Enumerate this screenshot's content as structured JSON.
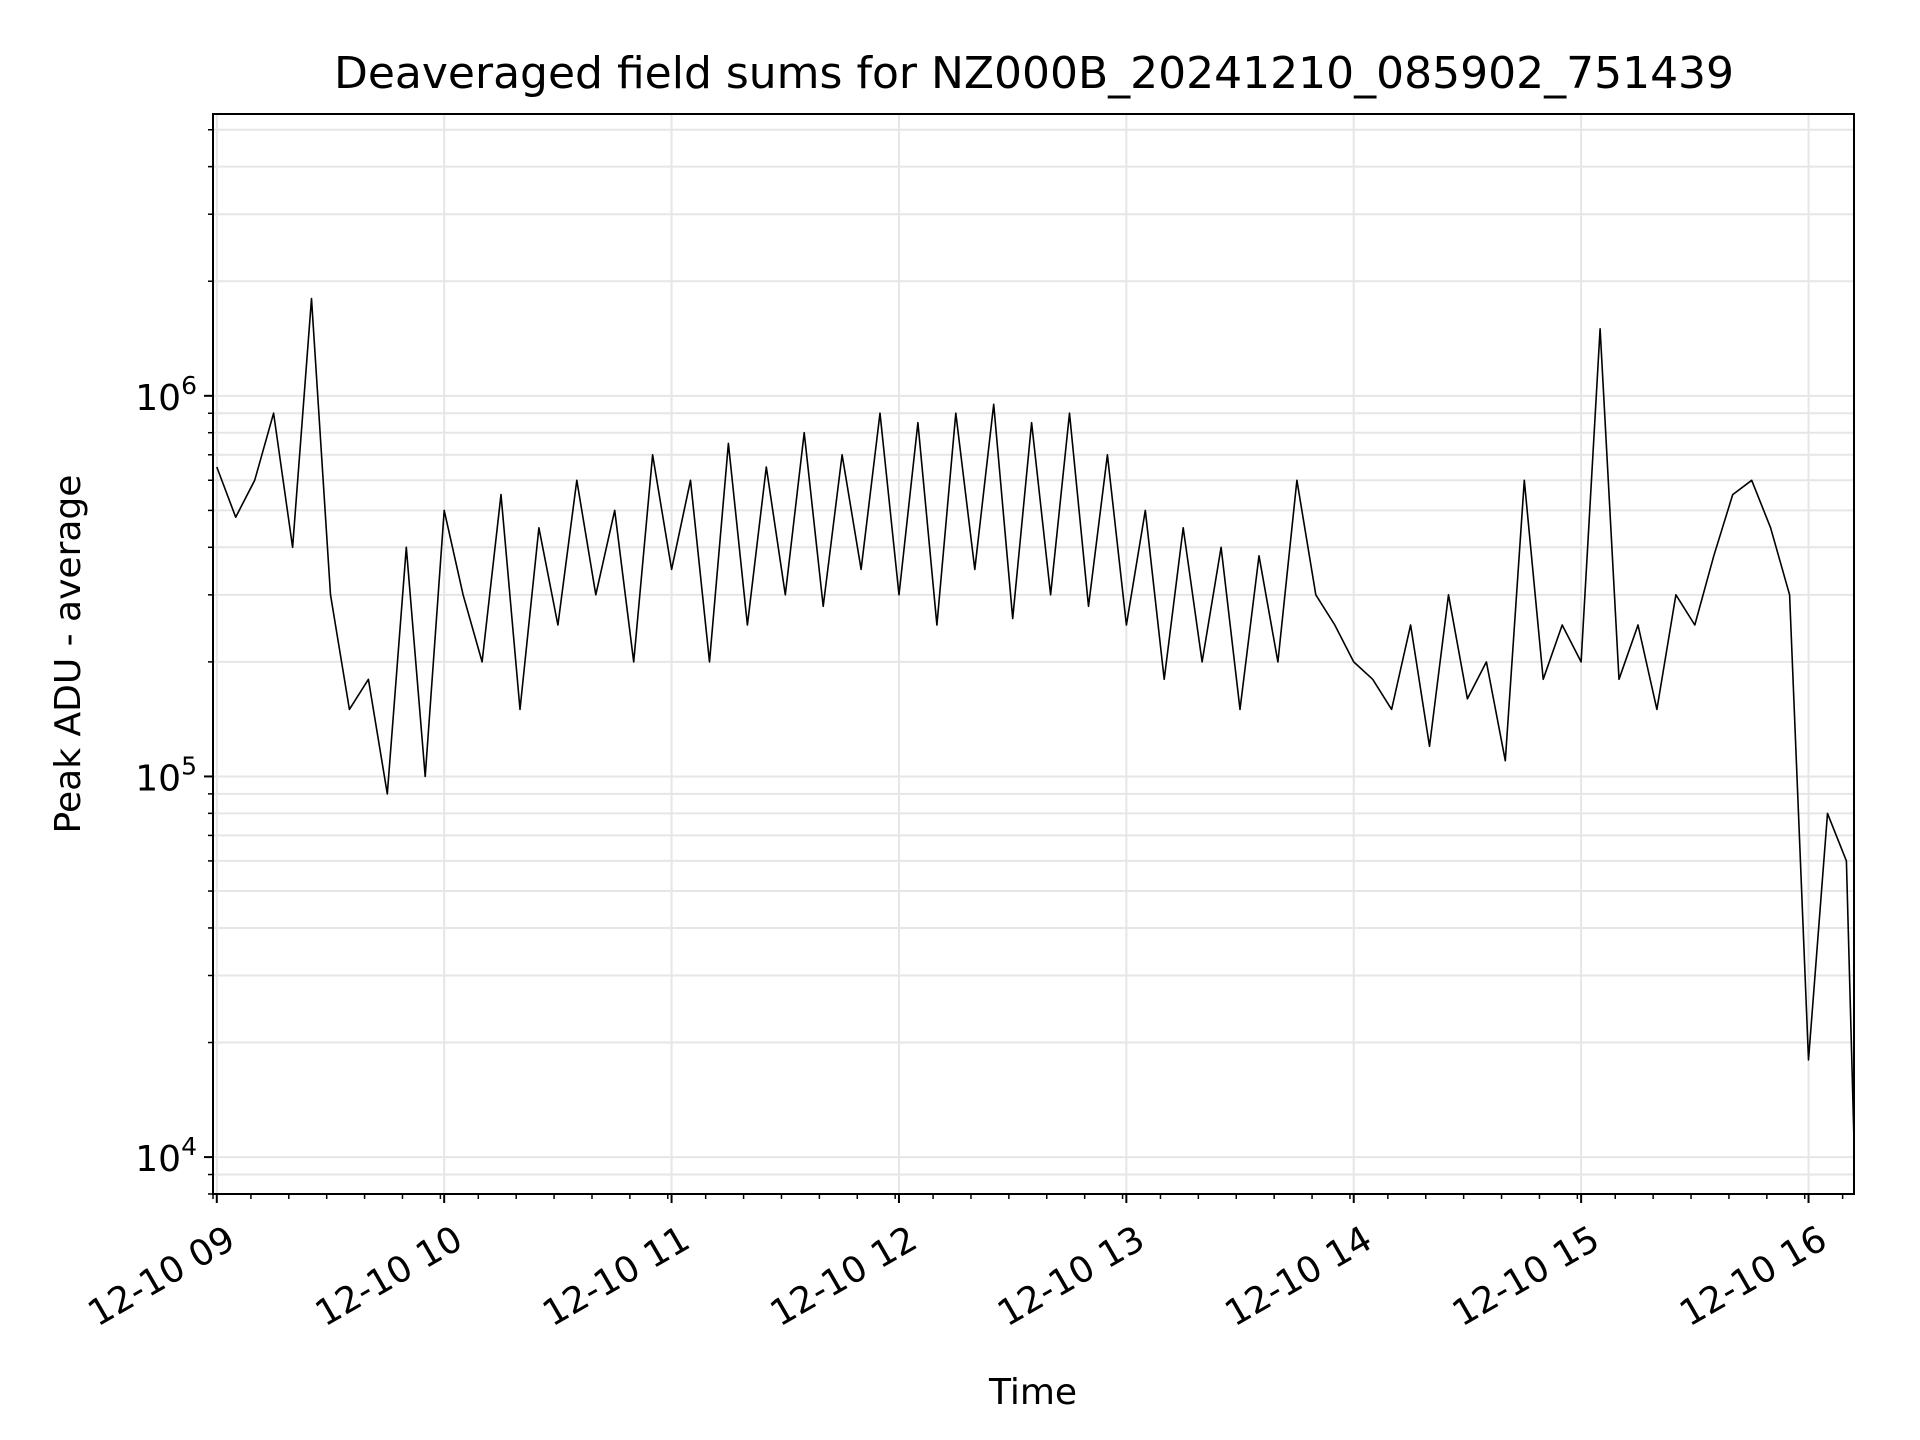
{
  "chart_data": {
    "type": "line",
    "title": "Deaveraged field sums for NZ000B_20241210_085902_751439",
    "xlabel": "Time",
    "ylabel": "Peak ADU - average",
    "y_scale": "log",
    "ylim": [
      8000,
      5500000
    ],
    "xlim": [
      "2024-12-10 08:59",
      "2024-12-10 16:12"
    ],
    "x_tick_labels": [
      "12-10 09",
      "12-10 10",
      "12-10 11",
      "12-10 12",
      "12-10 13",
      "12-10 14",
      "12-10 15",
      "12-10 16"
    ],
    "y_tick_labels": [
      {
        "base": "10",
        "exp": "4"
      },
      {
        "base": "10",
        "exp": "5"
      },
      {
        "base": "10",
        "exp": "6"
      }
    ],
    "grid": true,
    "line_color": "#000000",
    "series": [
      {
        "x": [
          "2024-12-10 09:00",
          "2024-12-10 09:05",
          "2024-12-10 09:10",
          "2024-12-10 09:15",
          "2024-12-10 09:20",
          "2024-12-10 09:25",
          "2024-12-10 09:30",
          "2024-12-10 09:35",
          "2024-12-10 09:40",
          "2024-12-10 09:45",
          "2024-12-10 09:50",
          "2024-12-10 09:55",
          "2024-12-10 10:00",
          "2024-12-10 10:05",
          "2024-12-10 10:10",
          "2024-12-10 10:15",
          "2024-12-10 10:20",
          "2024-12-10 10:25",
          "2024-12-10 10:30",
          "2024-12-10 10:35",
          "2024-12-10 10:40",
          "2024-12-10 10:45",
          "2024-12-10 10:50",
          "2024-12-10 10:55",
          "2024-12-10 11:00",
          "2024-12-10 11:05",
          "2024-12-10 11:10",
          "2024-12-10 11:15",
          "2024-12-10 11:20",
          "2024-12-10 11:25",
          "2024-12-10 11:30",
          "2024-12-10 11:35",
          "2024-12-10 11:40",
          "2024-12-10 11:45",
          "2024-12-10 11:50",
          "2024-12-10 11:55",
          "2024-12-10 12:00",
          "2024-12-10 12:05",
          "2024-12-10 12:10",
          "2024-12-10 12:15",
          "2024-12-10 12:20",
          "2024-12-10 12:25",
          "2024-12-10 12:30",
          "2024-12-10 12:35",
          "2024-12-10 12:40",
          "2024-12-10 12:45",
          "2024-12-10 12:50",
          "2024-12-10 12:55",
          "2024-12-10 13:00",
          "2024-12-10 13:05",
          "2024-12-10 13:10",
          "2024-12-10 13:15",
          "2024-12-10 13:20",
          "2024-12-10 13:25",
          "2024-12-10 13:30",
          "2024-12-10 13:35",
          "2024-12-10 13:40",
          "2024-12-10 13:45",
          "2024-12-10 13:50",
          "2024-12-10 13:55",
          "2024-12-10 14:00",
          "2024-12-10 14:05",
          "2024-12-10 14:10",
          "2024-12-10 14:15",
          "2024-12-10 14:20",
          "2024-12-10 14:25",
          "2024-12-10 14:30",
          "2024-12-10 14:35",
          "2024-12-10 14:40",
          "2024-12-10 14:45",
          "2024-12-10 14:50",
          "2024-12-10 14:55",
          "2024-12-10 15:00",
          "2024-12-10 15:05",
          "2024-12-10 15:10",
          "2024-12-10 15:15",
          "2024-12-10 15:20",
          "2024-12-10 15:25",
          "2024-12-10 15:30",
          "2024-12-10 15:35",
          "2024-12-10 15:40",
          "2024-12-10 15:45",
          "2024-12-10 15:50",
          "2024-12-10 15:55",
          "2024-12-10 16:00",
          "2024-12-10 16:05",
          "2024-12-10 16:10",
          "2024-12-10 16:12"
        ],
        "y": [
          650000,
          480000,
          600000,
          900000,
          400000,
          1800000,
          300000,
          150000,
          180000,
          90000,
          400000,
          100000,
          500000,
          300000,
          200000,
          550000,
          150000,
          450000,
          250000,
          600000,
          300000,
          500000,
          200000,
          700000,
          350000,
          600000,
          200000,
          750000,
          250000,
          650000,
          300000,
          800000,
          280000,
          700000,
          350000,
          900000,
          300000,
          850000,
          250000,
          900000,
          350000,
          950000,
          260000,
          850000,
          300000,
          900000,
          280000,
          700000,
          250000,
          500000,
          180000,
          450000,
          200000,
          400000,
          150000,
          380000,
          200000,
          600000,
          300000,
          250000,
          200000,
          180000,
          150000,
          250000,
          120000,
          300000,
          160000,
          200000,
          110000,
          600000,
          180000,
          250000,
          200000,
          1500000,
          180000,
          250000,
          150000,
          300000,
          250000,
          380000,
          550000,
          600000,
          450000,
          300000,
          18000,
          80000,
          60000,
          11000
        ]
      }
    ]
  }
}
